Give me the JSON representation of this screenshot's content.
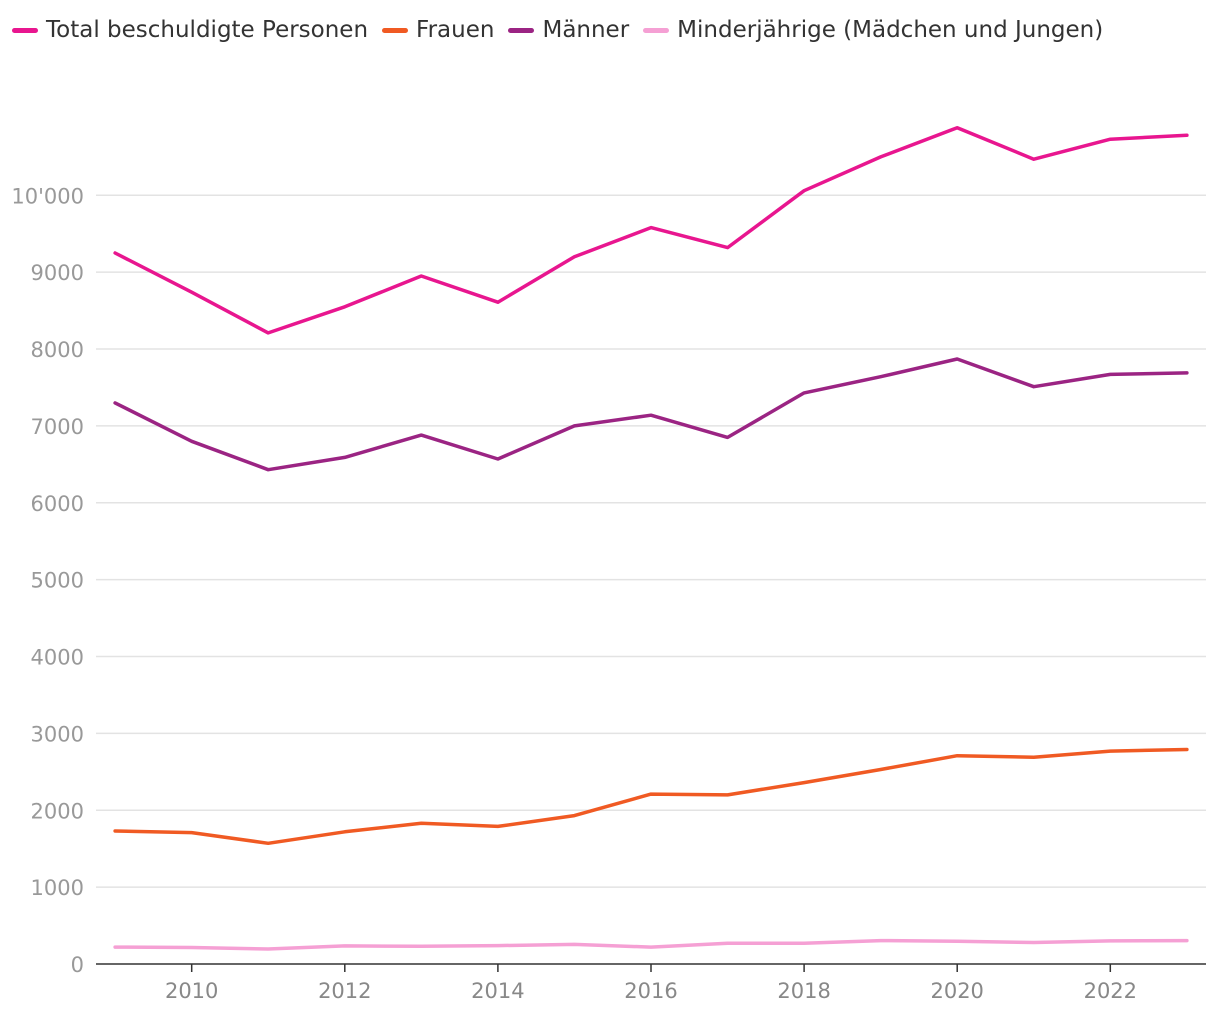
{
  "chart_data": {
    "type": "line",
    "title": "",
    "xlabel": "",
    "ylabel": "",
    "x": [
      2009,
      2010,
      2011,
      2012,
      2013,
      2014,
      2015,
      2016,
      2017,
      2018,
      2019,
      2020,
      2021,
      2022,
      2023
    ],
    "xlim": [
      2008.75,
      2023.25
    ],
    "ylim": [
      0,
      11500
    ],
    "x_ticks": [
      "2010",
      "2012",
      "2014",
      "2016",
      "2018",
      "2020",
      "2022"
    ],
    "x_tick_values": [
      2010,
      2012,
      2014,
      2016,
      2018,
      2020,
      2022
    ],
    "y_ticks": [
      "0",
      "1000",
      "2000",
      "3000",
      "4000",
      "5000",
      "6000",
      "7000",
      "8000",
      "9000",
      "10'000"
    ],
    "y_tick_values": [
      0,
      1000,
      2000,
      3000,
      4000,
      5000,
      6000,
      7000,
      8000,
      9000,
      10000
    ],
    "grid": true,
    "legend_position": "top-left",
    "series": [
      {
        "key": "total",
        "name": "Total beschuldigte Personen",
        "color": "#e8168f",
        "values": [
          9250,
          8740,
          8210,
          8550,
          8950,
          8610,
          9200,
          9580,
          9320,
          10060,
          10500,
          10880,
          10470,
          10730,
          10780
        ]
      },
      {
        "key": "frauen",
        "name": "Frauen",
        "color": "#f05a23",
        "values": [
          1730,
          1710,
          1570,
          1720,
          1830,
          1790,
          1930,
          2210,
          2200,
          2360,
          2530,
          2710,
          2690,
          2770,
          2790
        ]
      },
      {
        "key": "maenner",
        "name": "Männer",
        "color": "#9b2483",
        "values": [
          7300,
          6800,
          6430,
          6590,
          6880,
          6570,
          7000,
          7140,
          6850,
          7430,
          7640,
          7870,
          7510,
          7670,
          7690
        ]
      },
      {
        "key": "minderjaehrige",
        "name": "Minderjährige (Mädchen und Jungen)",
        "color": "#f5a0d4",
        "values": [
          220,
          215,
          195,
          235,
          230,
          240,
          255,
          220,
          270,
          270,
          305,
          295,
          280,
          300,
          305
        ]
      }
    ]
  }
}
